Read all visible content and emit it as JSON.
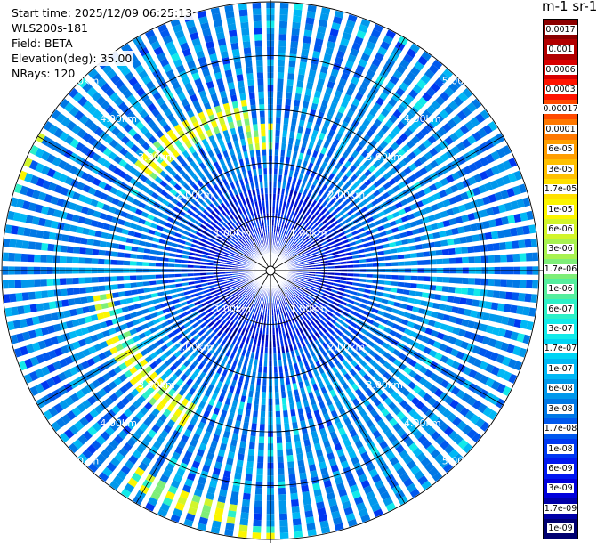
{
  "info": {
    "start_time": "Start time: 2025/12/09 06:25:13",
    "instrument": "WLS200s-181",
    "field": "Field: BETA",
    "elevation": "Elevation(deg): 35.00",
    "nrays": "NRays: 120"
  },
  "colorbar": {
    "unit_title": "m-1 sr-1",
    "entries": [
      {
        "label": "0.0017",
        "color": "#8b0000"
      },
      {
        "label": "0.001",
        "color": "#b10000"
      },
      {
        "label": "0.0006",
        "color": "#d80000"
      },
      {
        "label": "0.0003",
        "color": "#ff1400"
      },
      {
        "label": "0.00017",
        "color": "#ff4a00"
      },
      {
        "label": "0.0001",
        "color": "#ff7800"
      },
      {
        "label": "6e-05",
        "color": "#ff9e00"
      },
      {
        "label": "3e-05",
        "color": "#ffc000"
      },
      {
        "label": "1.7e-05",
        "color": "#ffe000"
      },
      {
        "label": "1e-05",
        "color": "#fbf500"
      },
      {
        "label": "6e-06",
        "color": "#d2f52a"
      },
      {
        "label": "3e-06",
        "color": "#a8f250"
      },
      {
        "label": "1.7e-06",
        "color": "#7eee78"
      },
      {
        "label": "1e-06",
        "color": "#55ee9e"
      },
      {
        "label": "6e-07",
        "color": "#2cf0c8"
      },
      {
        "label": "3e-07",
        "color": "#12eaea"
      },
      {
        "label": "1.7e-07",
        "color": "#00d4f5"
      },
      {
        "label": "1e-07",
        "color": "#00b8f5"
      },
      {
        "label": "6e-08",
        "color": "#0098ec"
      },
      {
        "label": "3e-08",
        "color": "#0078e6"
      },
      {
        "label": "1.7e-08",
        "color": "#0058ee"
      },
      {
        "label": "1e-08",
        "color": "#0038f2"
      },
      {
        "label": "6e-09",
        "color": "#0018f0"
      },
      {
        "label": "3e-09",
        "color": "#0000dc"
      },
      {
        "label": "1.7e-09",
        "color": "#0000a8"
      },
      {
        "label": "1e-09",
        "color": "#000070"
      }
    ]
  },
  "range_rings": [
    {
      "label": "1.00km",
      "km": 1
    },
    {
      "label": "2.00km",
      "km": 2
    },
    {
      "label": "3.00km",
      "km": 3
    },
    {
      "label": "4.00km",
      "km": 4
    },
    {
      "label": "5.00km",
      "km": 5
    }
  ],
  "scan": {
    "nrays": 120,
    "max_range_km": 5
  }
}
